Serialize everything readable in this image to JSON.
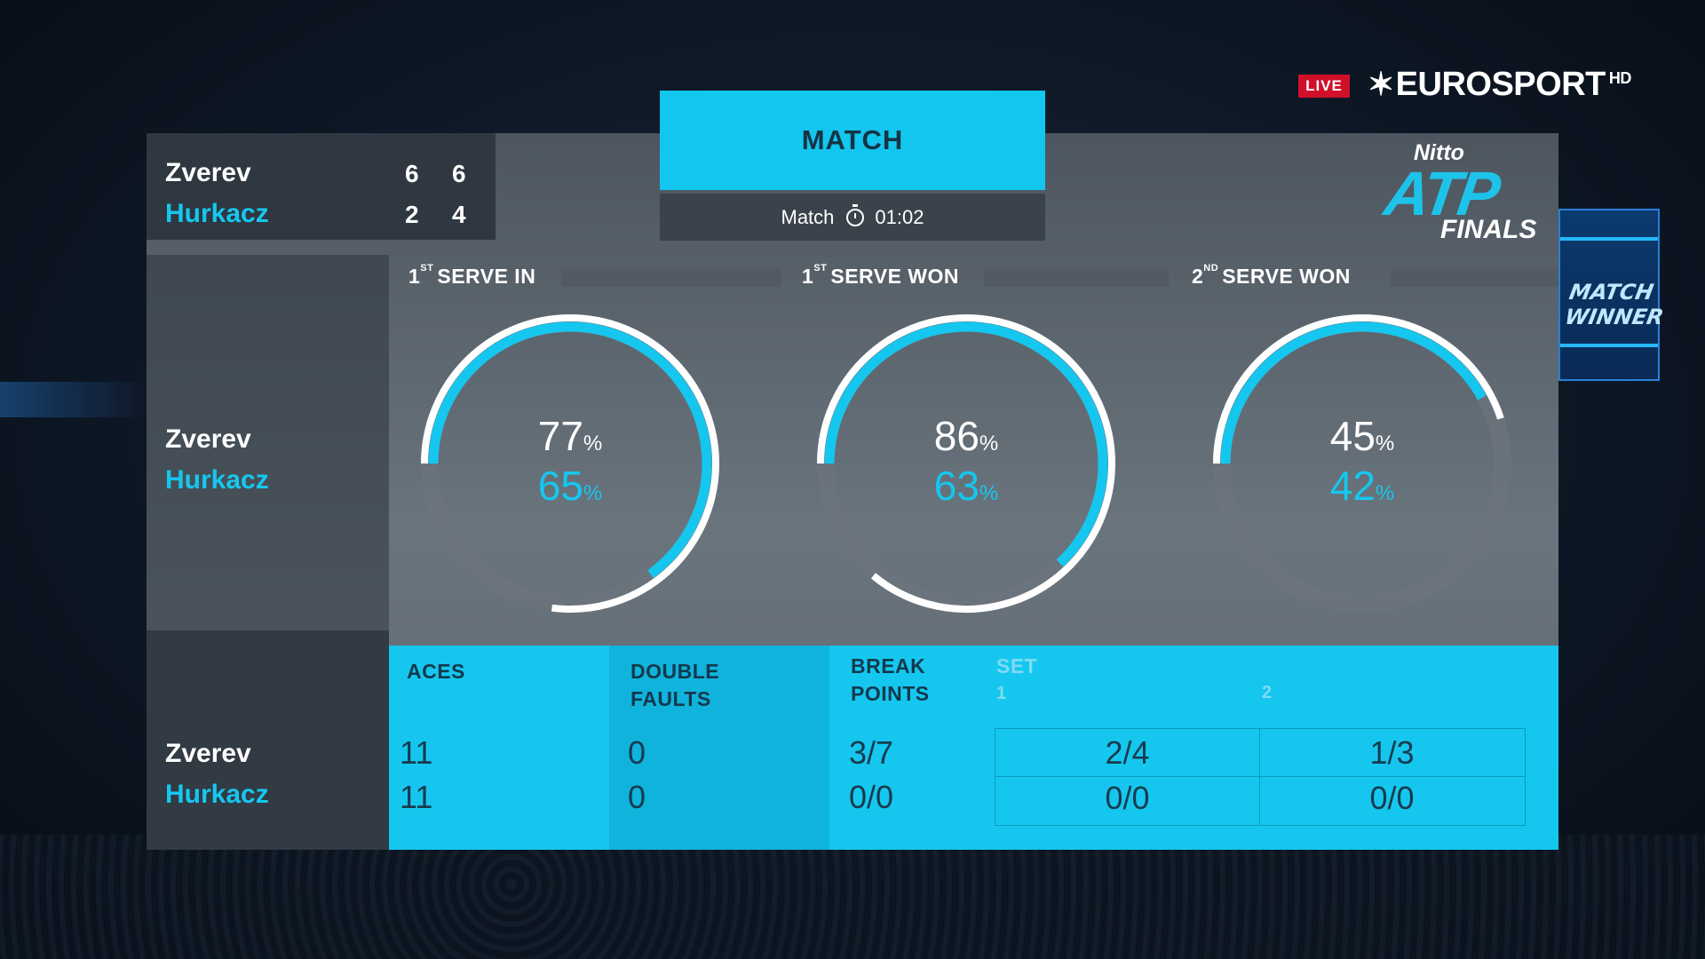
{
  "broadcast": {
    "live_label": "LIVE",
    "channel": "EUROSPORT",
    "channel_suffix": "HD"
  },
  "tournament_logo": {
    "sponsor": "Nitto",
    "brand": "ATP",
    "event": "FINALS"
  },
  "arena_screen_text": "MATCH WINNER",
  "header": {
    "tab_label": "MATCH",
    "timer_label": "Match",
    "timer_value": "01:02"
  },
  "players": {
    "p1": "Zverev",
    "p2": "Hurkacz"
  },
  "scoreboard": {
    "p1_sets": [
      "6",
      "6"
    ],
    "p2_sets": [
      "2",
      "4"
    ]
  },
  "serve_stats": [
    {
      "label_num": "1",
      "label_sup": "ST",
      "label_text": "SERVE IN",
      "p1_value": "77",
      "p2_value": "65",
      "p1_pct": 77,
      "p2_pct": 65
    },
    {
      "label_num": "1",
      "label_sup": "ST",
      "label_text": "SERVE WON",
      "p1_value": "86",
      "p2_value": "63",
      "p1_pct": 86,
      "p2_pct": 63
    },
    {
      "label_num": "2",
      "label_sup": "ND",
      "label_text": "SERVE WON",
      "p1_value": "45",
      "p2_value": "42",
      "p1_pct": 45,
      "p2_pct": 42
    }
  ],
  "percent_sign": "%",
  "bottom_stats": {
    "aces_label": "ACES",
    "double_faults_label_1": "DOUBLE",
    "double_faults_label_2": "FAULTS",
    "break_points_label_1": "BREAK",
    "break_points_label_2": "POINTS",
    "set_label": "SET",
    "set_numbers": [
      "1",
      "2"
    ],
    "aces": {
      "p1": "11",
      "p2": "11"
    },
    "double_faults": {
      "p1": "0",
      "p2": "0"
    },
    "break_points": {
      "p1": "3/7",
      "p2": "0/0"
    },
    "break_points_by_set": {
      "p1": [
        "2/4",
        "1/3"
      ],
      "p2": [
        "0/0",
        "0/0"
      ]
    }
  },
  "colors": {
    "accent": "#15c7ef",
    "panel": "#5a636c",
    "live_red": "#d0102a",
    "ring_track": "#6b747d"
  }
}
